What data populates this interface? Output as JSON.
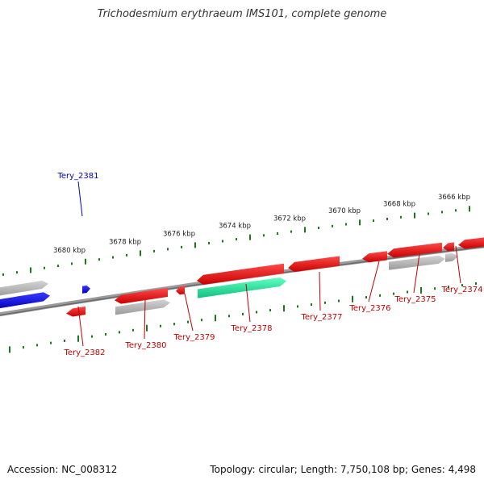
{
  "title": "Trichodesmium erythraeum IMS101, complete genome",
  "footer": {
    "accession": "Accession: NC_008312",
    "summary": "Topology: circular; Length: 7,750,108 bp; Genes: 4,498"
  },
  "colors": {
    "backbone": "#7a7a7a",
    "ticks": "#1a7a1a",
    "gene_red": "#e81010",
    "gene_grey": "#b0b0b0",
    "gene_blue": "#1010e0",
    "gene_teal": "#20e8a0",
    "label_red": "#c00000",
    "label_blue": "#0000c0"
  },
  "kbp_labels": [
    "3680 kbp",
    "3678 kbp",
    "3676 kbp",
    "3674 kbp",
    "3672 kbp",
    "3670 kbp",
    "3668 kbp",
    "3666 kbp"
  ],
  "genes": [
    {
      "label": "Tery_2381",
      "color": "blue"
    },
    {
      "label": "Tery_2382",
      "color": "red"
    },
    {
      "label": "Tery_2380",
      "color": "red"
    },
    {
      "label": "Tery_2379",
      "color": "red"
    },
    {
      "label": "Tery_2378",
      "color": "red"
    },
    {
      "label": "Tery_2377",
      "color": "red"
    },
    {
      "label": "Tery_2376",
      "color": "red"
    },
    {
      "label": "Tery_2375",
      "color": "red"
    },
    {
      "label": "Tery_2374",
      "color": "red"
    }
  ]
}
